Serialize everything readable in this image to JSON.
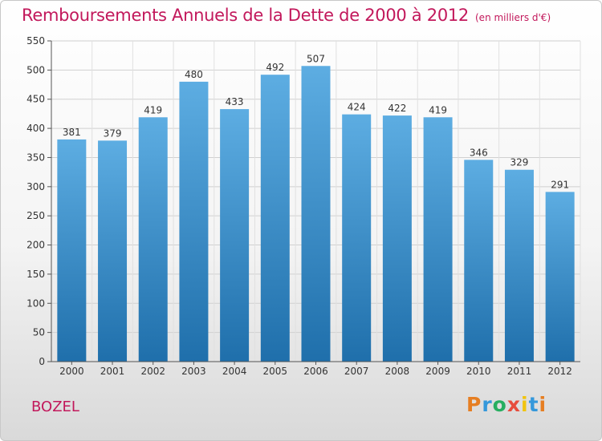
{
  "header": {
    "title": "Remboursements Annuels de la Dette de 2000 à 2012",
    "subtitle": "(en milliers d'€)"
  },
  "footer": {
    "place": "BOZEL",
    "logo_text": "Proxiti"
  },
  "colors": {
    "title": "#c2185b",
    "bar_top": "#5dade2",
    "bar_bottom": "#1f6fab",
    "logo_letters": [
      "#e67e22",
      "#3498db",
      "#27ae60",
      "#e74c3c",
      "#f1c40f",
      "#3498db",
      "#e67e22"
    ]
  },
  "chart_data": {
    "type": "bar",
    "title": "Remboursements Annuels de la Dette de 2000 à 2012",
    "subtitle": "(en milliers d'€)",
    "categories": [
      "2000",
      "2001",
      "2002",
      "2003",
      "2004",
      "2005",
      "2006",
      "2007",
      "2008",
      "2009",
      "2010",
      "2011",
      "2012"
    ],
    "values": [
      381,
      379,
      419,
      480,
      433,
      492,
      507,
      424,
      422,
      419,
      346,
      329,
      291
    ],
    "ylim": [
      0,
      550
    ],
    "yticks": [
      0,
      50,
      100,
      150,
      200,
      250,
      300,
      350,
      400,
      450,
      500,
      550
    ],
    "grid": true,
    "data_labels": true
  }
}
